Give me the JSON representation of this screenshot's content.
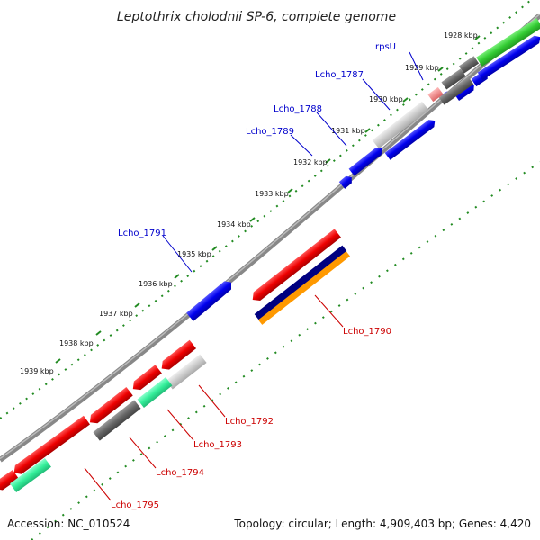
{
  "title": "Leptothrix cholodnii SP-6, complete genome",
  "footer": {
    "accession": "Accession: NC_010524",
    "summary": "Topology: circular; Length: 4,909,403 bp; Genes: 4,420"
  },
  "ticks": [
    "1928 kbp",
    "1929 kbp",
    "1930 kbp",
    "1931 kbp",
    "1932 kbp",
    "1933 kbp",
    "1934 kbp",
    "1935 kbp",
    "1936 kbp",
    "1937 kbp",
    "1938 kbp",
    "1939 kbp"
  ],
  "labels": {
    "forward": [
      "rpsU",
      "Lcho_1787",
      "Lcho_1788",
      "Lcho_1789",
      "Lcho_1791"
    ],
    "reverse": [
      "Lcho_1790",
      "Lcho_1792",
      "Lcho_1793",
      "Lcho_1794",
      "Lcho_1795"
    ]
  },
  "colors": {
    "forward_label": "#0000cc",
    "reverse_label": "#cc0000",
    "cds_forward": "#0000ee",
    "cds_reverse": "#ee0000",
    "rna": "#ee8888",
    "gc_positive": "#228b22",
    "backbone": "#888888",
    "gene_gray": "#666666",
    "gene_light_gray": "#c8c8c8",
    "gene_green": "#33cc33",
    "gene_teal": "#33ee99",
    "gene_navy": "#000080",
    "gene_orange": "#ff9900"
  }
}
